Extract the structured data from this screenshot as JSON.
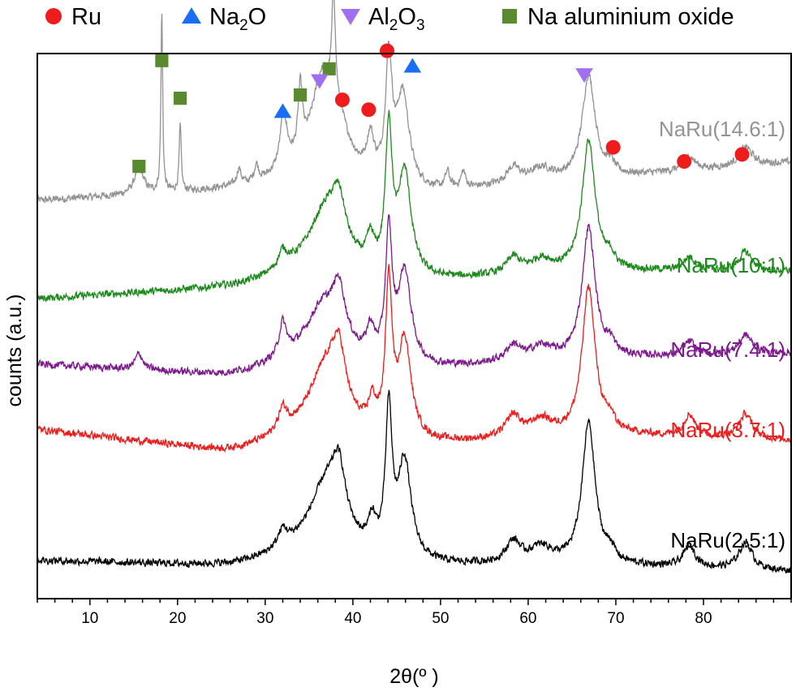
{
  "chart_data": {
    "type": "line",
    "title": "",
    "xlabel": "2θ(º )",
    "ylabel": "counts (a.u.)",
    "xlim": [
      4,
      90
    ],
    "ylim": [
      0,
      1
    ],
    "x_ticks": [
      10,
      20,
      30,
      40,
      50,
      60,
      70,
      80
    ],
    "x_minor_step": 2,
    "y_ticks": [],
    "grid": false,
    "legend": {
      "placement": "top",
      "entries": [
        {
          "marker": "circle",
          "color": "#ee1c1c",
          "label": "Ru"
        },
        {
          "marker": "triangle-up",
          "color": "#1a6ef5",
          "label": "Na",
          "sub": "2",
          "suffix": "O"
        },
        {
          "marker": "triangle-down",
          "color": "#a070f0",
          "label": "Al",
          "sub": "2",
          "suffix": "O",
          "sub2": "3"
        },
        {
          "marker": "square",
          "color": "#5a8a2f",
          "label": "Na aluminium oxide"
        }
      ]
    },
    "series": [
      {
        "name": "NaRu(14.6:1)",
        "color": "#939393",
        "baseline": [
          0.73,
          0.75,
          0.74,
          0.77,
          0.8
        ],
        "peaks": [
          {
            "x": 15.6,
            "h": 0.05,
            "w": 0.6
          },
          {
            "x": 18.2,
            "h": 0.33,
            "w": 0.12
          },
          {
            "x": 20.3,
            "h": 0.12,
            "w": 0.14
          },
          {
            "x": 27.0,
            "h": 0.03,
            "w": 0.3
          },
          {
            "x": 29.0,
            "h": 0.03,
            "w": 0.3
          },
          {
            "x": 32.1,
            "h": 0.1,
            "w": 0.5
          },
          {
            "x": 34.0,
            "h": 0.12,
            "w": 0.3
          },
          {
            "x": 36.5,
            "h": 0.16,
            "w": 1.5
          },
          {
            "x": 37.8,
            "h": 0.2,
            "w": 0.25
          },
          {
            "x": 38.5,
            "h": 0.06,
            "w": 1.5
          },
          {
            "x": 42.0,
            "h": 0.07,
            "w": 0.5
          },
          {
            "x": 44.1,
            "h": 0.22,
            "w": 0.45
          },
          {
            "x": 45.7,
            "h": 0.17,
            "w": 0.9
          },
          {
            "x": 50.8,
            "h": 0.03,
            "w": 0.3
          },
          {
            "x": 52.6,
            "h": 0.03,
            "w": 0.3
          },
          {
            "x": 58.3,
            "h": 0.03,
            "w": 1.0
          },
          {
            "x": 61.5,
            "h": 0.025,
            "w": 1.5
          },
          {
            "x": 66.9,
            "h": 0.19,
            "w": 0.9
          },
          {
            "x": 69.4,
            "h": 0.02,
            "w": 0.5
          },
          {
            "x": 78.4,
            "h": 0.025,
            "w": 0.8
          },
          {
            "x": 84.8,
            "h": 0.035,
            "w": 0.9
          }
        ]
      },
      {
        "name": "NaRu(10:1)",
        "color": "#1e8a1e",
        "baseline": [
          0.55,
          0.57,
          0.58,
          0.6,
          0.6
        ],
        "peaks": [
          {
            "x": 32.0,
            "h": 0.03,
            "w": 0.6
          },
          {
            "x": 37.0,
            "h": 0.1,
            "w": 2.2
          },
          {
            "x": 38.4,
            "h": 0.08,
            "w": 0.9
          },
          {
            "x": 42.0,
            "h": 0.05,
            "w": 0.5
          },
          {
            "x": 44.1,
            "h": 0.26,
            "w": 0.45
          },
          {
            "x": 45.9,
            "h": 0.19,
            "w": 0.9
          },
          {
            "x": 58.3,
            "h": 0.03,
            "w": 1.0
          },
          {
            "x": 61.5,
            "h": 0.025,
            "w": 1.5
          },
          {
            "x": 66.9,
            "h": 0.24,
            "w": 0.9
          },
          {
            "x": 69.4,
            "h": 0.02,
            "w": 0.5
          },
          {
            "x": 78.4,
            "h": 0.025,
            "w": 0.8
          },
          {
            "x": 84.8,
            "h": 0.035,
            "w": 0.9
          }
        ]
      },
      {
        "name": "NaRu(7.4:1)",
        "color": "#7d1a8c",
        "baseline": [
          0.43,
          0.41,
          0.42,
          0.44,
          0.45
        ],
        "peaks": [
          {
            "x": 15.6,
            "h": 0.03,
            "w": 0.5
          },
          {
            "x": 32.0,
            "h": 0.06,
            "w": 0.5
          },
          {
            "x": 36.5,
            "h": 0.08,
            "w": 2.0
          },
          {
            "x": 38.4,
            "h": 0.1,
            "w": 0.9
          },
          {
            "x": 42.0,
            "h": 0.05,
            "w": 0.5
          },
          {
            "x": 44.1,
            "h": 0.23,
            "w": 0.45
          },
          {
            "x": 45.9,
            "h": 0.17,
            "w": 0.9
          },
          {
            "x": 58.3,
            "h": 0.03,
            "w": 1.0
          },
          {
            "x": 61.5,
            "h": 0.025,
            "w": 1.5
          },
          {
            "x": 66.9,
            "h": 0.24,
            "w": 0.9
          },
          {
            "x": 69.4,
            "h": 0.02,
            "w": 0.5
          },
          {
            "x": 78.4,
            "h": 0.025,
            "w": 0.8
          },
          {
            "x": 84.8,
            "h": 0.035,
            "w": 0.9
          }
        ]
      },
      {
        "name": "NaRu(3.7:1)",
        "color": "#ee1c1c",
        "baseline": [
          0.31,
          0.27,
          0.28,
          0.3,
          0.29
        ],
        "peaks": [
          {
            "x": 32.0,
            "h": 0.04,
            "w": 0.6
          },
          {
            "x": 37.0,
            "h": 0.11,
            "w": 2.2
          },
          {
            "x": 38.4,
            "h": 0.1,
            "w": 0.9
          },
          {
            "x": 42.2,
            "h": 0.05,
            "w": 0.5
          },
          {
            "x": 44.1,
            "h": 0.27,
            "w": 0.45
          },
          {
            "x": 45.9,
            "h": 0.18,
            "w": 0.9
          },
          {
            "x": 58.3,
            "h": 0.04,
            "w": 1.0
          },
          {
            "x": 61.5,
            "h": 0.03,
            "w": 1.5
          },
          {
            "x": 66.9,
            "h": 0.27,
            "w": 0.9
          },
          {
            "x": 69.4,
            "h": 0.02,
            "w": 0.5
          },
          {
            "x": 78.4,
            "h": 0.04,
            "w": 0.8
          },
          {
            "x": 84.8,
            "h": 0.045,
            "w": 0.9
          }
        ]
      },
      {
        "name": "NaRu(2.5:1)",
        "color": "#000000",
        "baseline": [
          0.07,
          0.06,
          0.06,
          0.06,
          0.05
        ],
        "peaks": [
          {
            "x": 32.0,
            "h": 0.03,
            "w": 0.6
          },
          {
            "x": 37.0,
            "h": 0.11,
            "w": 2.2
          },
          {
            "x": 38.4,
            "h": 0.1,
            "w": 0.9
          },
          {
            "x": 42.2,
            "h": 0.05,
            "w": 0.5
          },
          {
            "x": 44.1,
            "h": 0.26,
            "w": 0.45
          },
          {
            "x": 45.9,
            "h": 0.18,
            "w": 0.9
          },
          {
            "x": 58.3,
            "h": 0.04,
            "w": 1.0
          },
          {
            "x": 61.5,
            "h": 0.03,
            "w": 1.5
          },
          {
            "x": 66.9,
            "h": 0.26,
            "w": 0.9
          },
          {
            "x": 69.4,
            "h": 0.02,
            "w": 0.5
          },
          {
            "x": 78.4,
            "h": 0.04,
            "w": 0.8
          },
          {
            "x": 84.8,
            "h": 0.05,
            "w": 0.9
          }
        ]
      }
    ],
    "annotations": [
      {
        "marker": "square",
        "color": "#5a8a2f",
        "x": 15.6,
        "y": 0.793
      },
      {
        "marker": "square",
        "color": "#5a8a2f",
        "x": 18.2,
        "y": 0.987
      },
      {
        "marker": "square",
        "color": "#5a8a2f",
        "x": 20.3,
        "y": 0.918
      },
      {
        "marker": "square",
        "color": "#5a8a2f",
        "x": 34.0,
        "y": 0.924
      },
      {
        "marker": "square",
        "color": "#5a8a2f",
        "x": 37.3,
        "y": 0.972
      },
      {
        "marker": "triangle-up",
        "color": "#1a6ef5",
        "x": 32.0,
        "y": 0.894
      },
      {
        "marker": "triangle-up",
        "color": "#1a6ef5",
        "x": 46.8,
        "y": 0.977
      },
      {
        "marker": "triangle-down",
        "color": "#a070f0",
        "x": 36.2,
        "y": 0.95
      },
      {
        "marker": "triangle-down",
        "color": "#a070f0",
        "x": 66.4,
        "y": 0.961
      },
      {
        "marker": "circle",
        "color": "#ee1c1c",
        "x": 38.8,
        "y": 0.915
      },
      {
        "marker": "circle",
        "color": "#ee1c1c",
        "x": 41.8,
        "y": 0.897
      },
      {
        "marker": "circle",
        "color": "#ee1c1c",
        "x": 43.9,
        "y": 1.005
      },
      {
        "marker": "circle",
        "color": "#ee1c1c",
        "x": 69.7,
        "y": 0.828
      },
      {
        "marker": "circle",
        "color": "#ee1c1c",
        "x": 77.8,
        "y": 0.802
      },
      {
        "marker": "circle",
        "color": "#ee1c1c",
        "x": 84.4,
        "y": 0.815
      }
    ]
  }
}
